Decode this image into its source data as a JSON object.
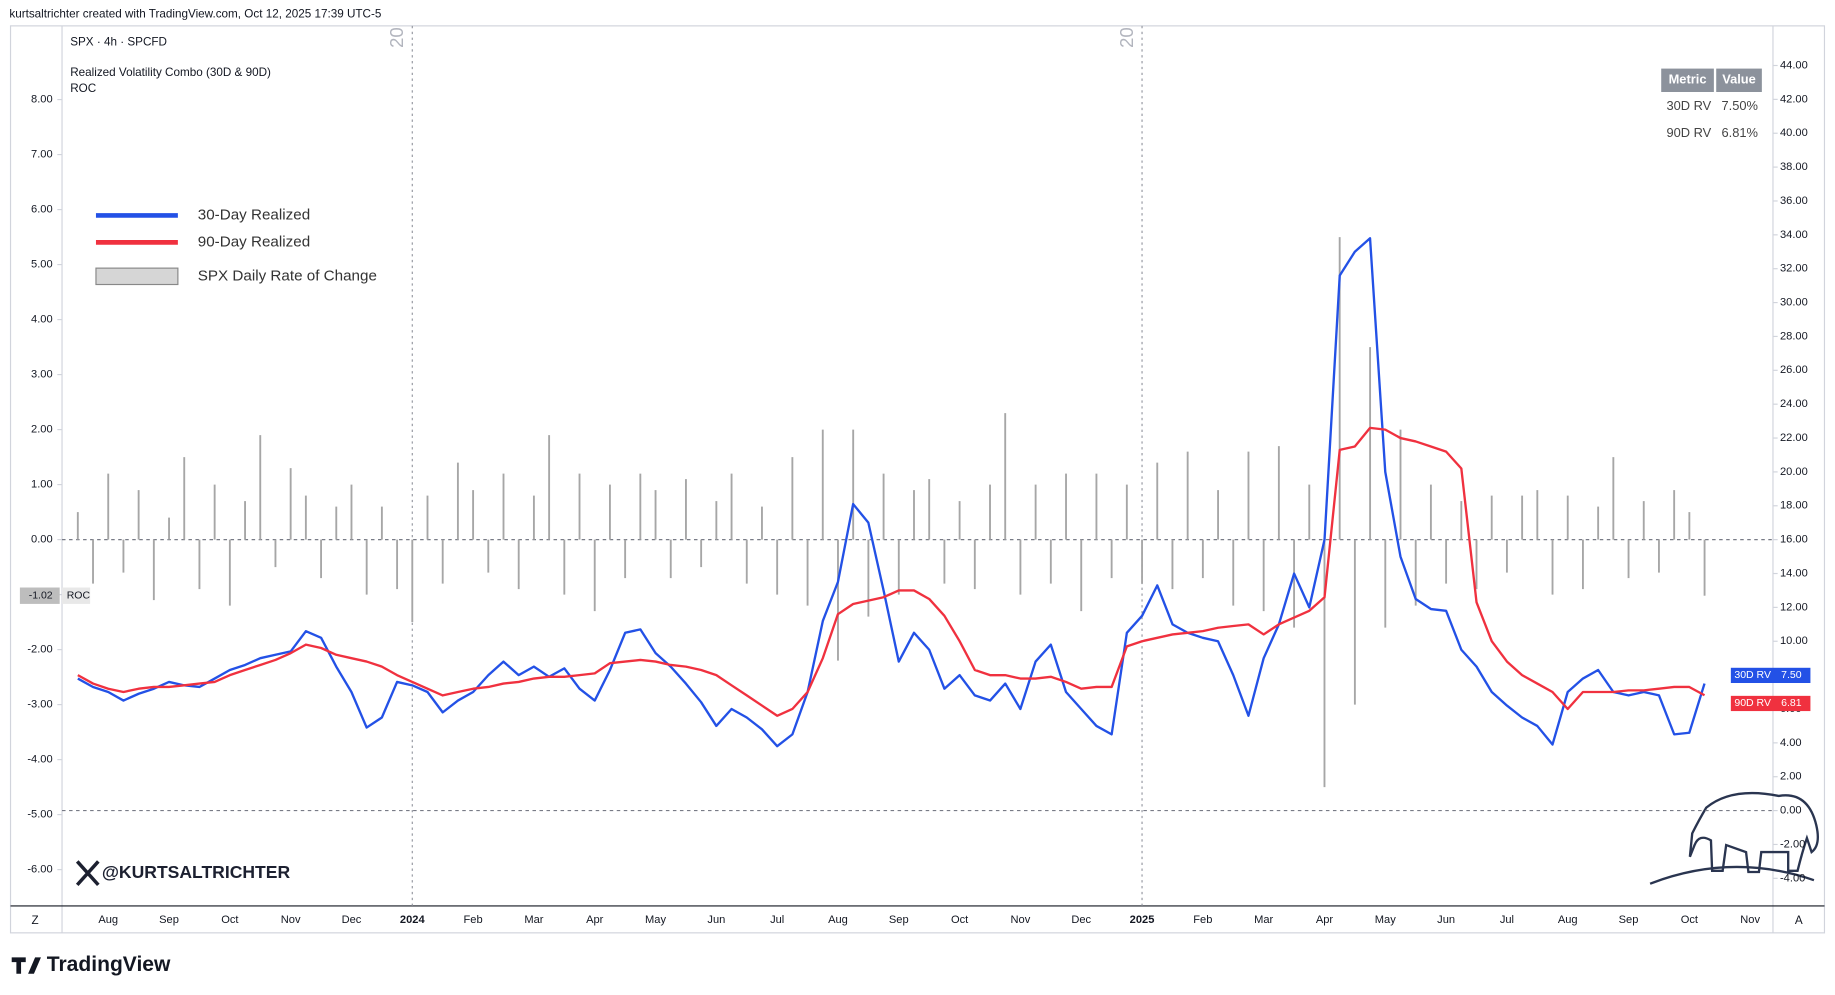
{
  "header": {
    "attribution": "kurtsaltrichter created with TradingView.com, Oct 12, 2025 17:39 UTC-5"
  },
  "chart_data": {
    "type": "line",
    "symbol": "SPX · 4h · SPCFD",
    "indicator": "Realized Volatility Combo (30D & 90D)",
    "indicator2": "ROC",
    "categories": [
      null,
      null,
      "Aug",
      null,
      null,
      null,
      "Sep",
      null,
      null,
      null,
      "Oct",
      null,
      null,
      null,
      "Nov",
      null,
      null,
      null,
      "Dec",
      null,
      null,
      null,
      "2024",
      null,
      null,
      null,
      "Feb",
      null,
      null,
      null,
      "Mar",
      null,
      null,
      null,
      "Apr",
      null,
      null,
      null,
      "May",
      null,
      null,
      null,
      "Jun",
      null,
      null,
      null,
      "Jul",
      null,
      null,
      null,
      "Aug",
      null,
      null,
      null,
      "Sep",
      null,
      null,
      null,
      "Oct",
      null,
      null,
      null,
      "Nov",
      null,
      null,
      null,
      "Dec",
      null,
      null,
      null,
      "2025",
      null,
      null,
      null,
      "Feb",
      null,
      null,
      null,
      "Mar",
      null,
      null,
      null,
      "Apr",
      null,
      null,
      null,
      "May",
      null,
      null,
      null,
      "Jun",
      null,
      null,
      null,
      "Jul",
      null,
      null,
      null,
      "Aug",
      null,
      null,
      null,
      "Sep",
      null,
      null,
      null,
      "Oct",
      null,
      null,
      null,
      "Nov",
      null
    ],
    "series": [
      {
        "name": "30-Day Realized",
        "type": "line",
        "axis": "y2",
        "color": "#2351e6",
        "badge": {
          "name": "30D RV",
          "value": "7.50"
        },
        "values": [
          7.8,
          7.3,
          7.0,
          6.5,
          6.9,
          7.2,
          7.6,
          7.4,
          7.3,
          7.8,
          8.3,
          8.6,
          9.0,
          9.2,
          9.4,
          10.6,
          10.2,
          8.5,
          7.0,
          4.9,
          5.5,
          7.6,
          7.4,
          7.0,
          5.8,
          6.5,
          7.0,
          8.0,
          8.8,
          8.0,
          8.5,
          7.9,
          8.4,
          7.2,
          6.5,
          8.3,
          10.5,
          10.7,
          9.3,
          8.5,
          7.5,
          6.4,
          5.0,
          6.0,
          5.5,
          4.8,
          3.8,
          4.5,
          7.0,
          11.2,
          13.5,
          18.1,
          17.0,
          13.0,
          8.8,
          10.5,
          9.5,
          7.2,
          8.0,
          6.8,
          6.5,
          7.5,
          6.0,
          8.8,
          9.8,
          7.0,
          6.0,
          5.0,
          4.5,
          10.5,
          11.5,
          13.3,
          11.0,
          10.5,
          10.2,
          10.0,
          8.0,
          5.6,
          9.0,
          11.0,
          14.0,
          12.0,
          16.0,
          31.6,
          33.0,
          33.8,
          20.0,
          15.0,
          12.5,
          11.9,
          11.8,
          9.5,
          8.5,
          7.0,
          6.2,
          5.5,
          5.0,
          3.9,
          7.0,
          7.8,
          8.3,
          7.0,
          6.8,
          7.0,
          6.8,
          4.5,
          4.6,
          7.5,
          null,
          null,
          null,
          null
        ]
      },
      {
        "name": "90-Day Realized",
        "type": "line",
        "axis": "y2",
        "color": "#f0313f",
        "badge": {
          "name": "90D RV",
          "value": "6.81"
        },
        "values": [
          8.0,
          7.5,
          7.2,
          7.0,
          7.2,
          7.3,
          7.3,
          7.4,
          7.5,
          7.6,
          8.0,
          8.3,
          8.6,
          8.9,
          9.3,
          9.8,
          9.6,
          9.2,
          9.0,
          8.8,
          8.5,
          8.0,
          7.6,
          7.2,
          6.8,
          7.0,
          7.2,
          7.3,
          7.5,
          7.6,
          7.8,
          7.9,
          7.9,
          8.0,
          8.1,
          8.7,
          8.8,
          8.9,
          8.8,
          8.6,
          8.5,
          8.3,
          8.0,
          7.4,
          6.8,
          6.2,
          5.6,
          6.0,
          7.0,
          9.0,
          11.6,
          12.2,
          12.4,
          12.6,
          13.0,
          13.0,
          12.5,
          11.5,
          10.0,
          8.3,
          8.0,
          8.0,
          7.8,
          7.8,
          7.9,
          7.6,
          7.2,
          7.3,
          7.3,
          9.7,
          10.0,
          10.2,
          10.4,
          10.5,
          10.6,
          10.8,
          10.9,
          11.0,
          10.4,
          11.0,
          11.4,
          11.8,
          12.6,
          21.3,
          21.5,
          22.6,
          22.5,
          22.0,
          21.8,
          21.5,
          21.2,
          20.2,
          12.3,
          10.0,
          8.8,
          8.0,
          7.5,
          7.0,
          6.0,
          7.0,
          7.0,
          7.0,
          7.1,
          7.1,
          7.2,
          7.3,
          7.3,
          6.81,
          null,
          null,
          null,
          null
        ]
      },
      {
        "name": "SPX Daily Rate of Change",
        "type": "bar",
        "axis": "y",
        "color": "#a6a6a6",
        "badge": {
          "name": "ROC",
          "value": "-1.02"
        },
        "values": [
          0.5,
          -0.8,
          1.2,
          -0.6,
          0.9,
          -1.1,
          0.4,
          1.5,
          -0.9,
          1.0,
          -1.2,
          0.7,
          1.9,
          -0.5,
          1.3,
          0.8,
          -0.7,
          0.6,
          1.0,
          -1.0,
          0.6,
          -0.9,
          -1.5,
          0.8,
          -0.8,
          1.4,
          0.9,
          -0.6,
          1.2,
          -0.9,
          0.8,
          1.9,
          -1.0,
          1.2,
          -1.3,
          1.0,
          -0.7,
          1.2,
          0.9,
          -0.7,
          1.1,
          -0.5,
          0.7,
          1.2,
          -0.8,
          0.6,
          -1.0,
          1.5,
          -1.2,
          2.0,
          -2.2,
          2.0,
          -1.4,
          1.2,
          -1.0,
          0.9,
          1.1,
          -0.8,
          0.7,
          -0.9,
          1.0,
          2.3,
          -1.0,
          1.0,
          -0.8,
          1.2,
          -1.3,
          1.2,
          -0.7,
          1.0,
          -0.8,
          1.4,
          -0.9,
          1.6,
          -0.7,
          0.9,
          -1.2,
          1.6,
          -1.3,
          1.7,
          -1.6,
          1.0,
          -4.5,
          5.5,
          -3.0,
          3.5,
          -1.6,
          2.0,
          -1.2,
          1.0,
          -0.8,
          0.7,
          -0.9,
          0.8,
          -0.6,
          0.8,
          0.9,
          -1.0,
          0.8,
          -0.9,
          0.6,
          1.5,
          -0.7,
          0.7,
          -0.6,
          0.9,
          0.5,
          -1.02,
          null,
          null,
          null,
          null
        ]
      }
    ],
    "ylim": [
      -6.66,
      9.34
    ],
    "yticks": [
      {
        "value": -6,
        "label": "-6.00"
      },
      {
        "value": -5,
        "label": "-5.00"
      },
      {
        "value": -4,
        "label": "-4.00"
      },
      {
        "value": -3,
        "label": "-3.00"
      },
      {
        "value": -2,
        "label": "-2.00"
      },
      {
        "value": -1,
        "label": "-1.00"
      },
      {
        "value": 0,
        "label": "0.00"
      },
      {
        "value": 1,
        "label": "1.00"
      },
      {
        "value": 2,
        "label": "2.00"
      },
      {
        "value": 3,
        "label": "3.00"
      },
      {
        "value": 4,
        "label": "4.00"
      },
      {
        "value": 5,
        "label": "5.00"
      },
      {
        "value": 6,
        "label": "6.00"
      },
      {
        "value": 7,
        "label": "7.00"
      },
      {
        "value": 8,
        "label": "8.00"
      }
    ],
    "y2lim": [
      -5.63,
      46.34
    ],
    "y2ticks": [
      {
        "value": -4,
        "label": "-4.00"
      },
      {
        "value": -2,
        "label": "-2.00"
      },
      {
        "value": 0,
        "label": "0.00"
      },
      {
        "value": 2,
        "label": "2.00"
      },
      {
        "value": 4,
        "label": "4.00"
      },
      {
        "value": 6,
        "label": "6.00"
      },
      {
        "value": 8,
        "label": "8.00"
      },
      {
        "value": 10,
        "label": "10.00"
      },
      {
        "value": 12,
        "label": "12.00"
      },
      {
        "value": 14,
        "label": "14.00"
      },
      {
        "value": 16,
        "label": "16.00"
      },
      {
        "value": 18,
        "label": "18.00"
      },
      {
        "value": 20,
        "label": "20.00"
      },
      {
        "value": 22,
        "label": "22.00"
      },
      {
        "value": 24,
        "label": "24.00"
      },
      {
        "value": 26,
        "label": "26.00"
      },
      {
        "value": 28,
        "label": "28.00"
      },
      {
        "value": 30,
        "label": "30.00"
      },
      {
        "value": 32,
        "label": "32.00"
      },
      {
        "value": 34,
        "label": "34.00"
      },
      {
        "value": 36,
        "label": "36.00"
      },
      {
        "value": 38,
        "label": "38.00"
      },
      {
        "value": 40,
        "label": "40.00"
      },
      {
        "value": 42,
        "label": "42.00"
      },
      {
        "value": 44,
        "label": "44.00"
      }
    ],
    "grid": false,
    "legend": "top-left",
    "session_labels": [
      "20",
      "20"
    ],
    "table": {
      "header": [
        "Metric",
        "Value"
      ],
      "rows": [
        [
          "30D RV",
          "7.50%"
        ],
        [
          "90D RV",
          "6.81%"
        ]
      ]
    }
  },
  "footer": {
    "handle": "@KURTSALTRICHTER",
    "brand": "TradingView",
    "left_button": "Z",
    "right_button": "A"
  }
}
